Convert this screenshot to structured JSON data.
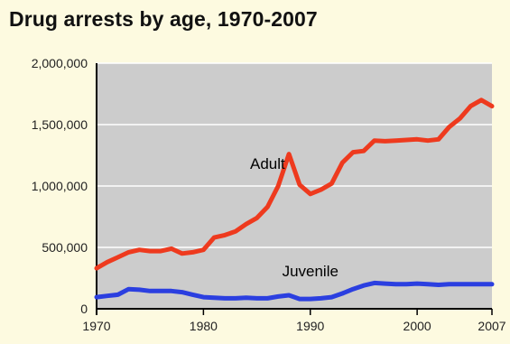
{
  "chart_data": {
    "type": "line",
    "title": "Drug arrests by age, 1970-2007",
    "xlabel": "",
    "ylabel": "",
    "xlim": [
      1970,
      2007
    ],
    "ylim": [
      0,
      2000000
    ],
    "x_ticks": [
      1970,
      1980,
      1990,
      2000,
      2007
    ],
    "y_ticks": [
      0,
      500000,
      1000000,
      1500000,
      2000000
    ],
    "y_tick_labels": [
      "0",
      "500,000",
      "1,000,000",
      "1,500,000",
      "2,000,000"
    ],
    "grid": true,
    "legend": "none",
    "background_color": "#cccccc",
    "series": [
      {
        "name": "Adult",
        "color": "#ee3a1e",
        "x": [
          1970,
          1971,
          1972,
          1973,
          1974,
          1975,
          1976,
          1977,
          1978,
          1979,
          1980,
          1981,
          1982,
          1983,
          1984,
          1985,
          1986,
          1987,
          1988,
          1989,
          1990,
          1991,
          1992,
          1993,
          1994,
          1995,
          1996,
          1997,
          1998,
          1999,
          2000,
          2001,
          2002,
          2003,
          2004,
          2005,
          2006,
          2007
        ],
        "values": [
          330000,
          380000,
          420000,
          460000,
          480000,
          470000,
          470000,
          490000,
          450000,
          460000,
          480000,
          580000,
          600000,
          630000,
          690000,
          740000,
          830000,
          1000000,
          1260000,
          1010000,
          935000,
          970000,
          1020000,
          1190000,
          1275000,
          1285000,
          1370000,
          1365000,
          1370000,
          1375000,
          1380000,
          1370000,
          1380000,
          1480000,
          1550000,
          1650000,
          1700000,
          1650000
        ]
      },
      {
        "name": "Juvenile",
        "color": "#2b3fe0",
        "x": [
          1970,
          1971,
          1972,
          1973,
          1974,
          1975,
          1976,
          1977,
          1978,
          1979,
          1980,
          1981,
          1982,
          1983,
          1984,
          1985,
          1986,
          1987,
          1988,
          1989,
          1990,
          1991,
          1992,
          1993,
          1994,
          1995,
          1996,
          1997,
          1998,
          1999,
          2000,
          2001,
          2002,
          2003,
          2004,
          2005,
          2006,
          2007
        ],
        "values": [
          95000,
          105000,
          115000,
          160000,
          155000,
          145000,
          145000,
          145000,
          135000,
          115000,
          95000,
          90000,
          85000,
          85000,
          90000,
          85000,
          85000,
          100000,
          110000,
          80000,
          80000,
          85000,
          95000,
          125000,
          160000,
          190000,
          210000,
          205000,
          200000,
          200000,
          205000,
          200000,
          195000,
          200000,
          200000,
          200000,
          200000,
          200000
        ]
      }
    ]
  }
}
